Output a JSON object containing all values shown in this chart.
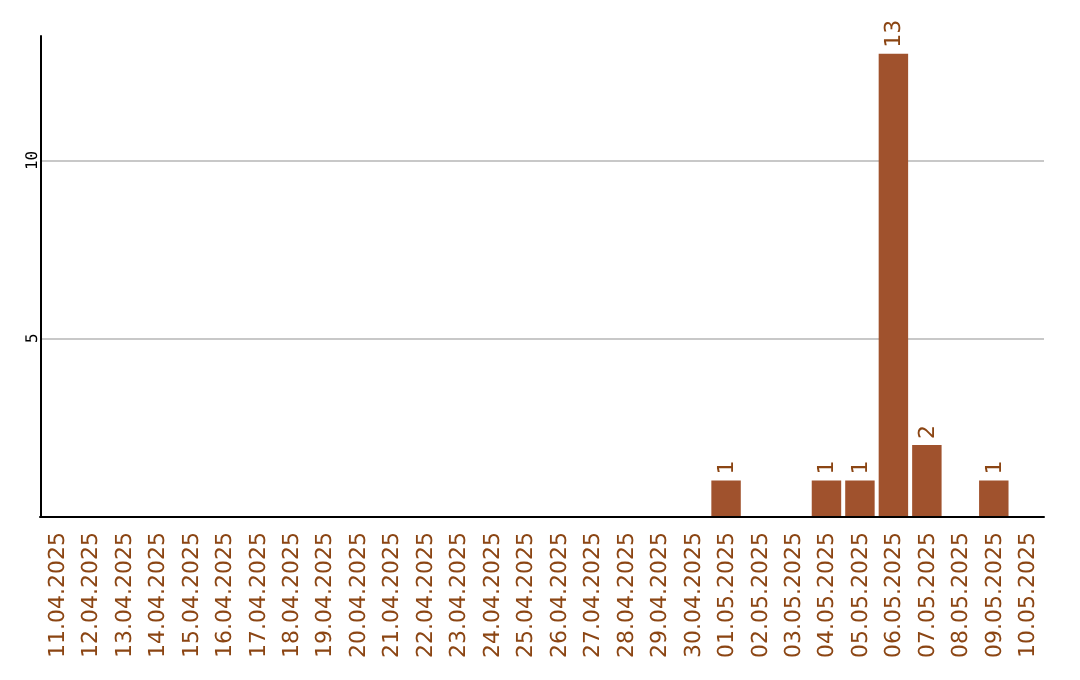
{
  "chart_data": {
    "type": "bar",
    "categories": [
      "11.04.2025",
      "12.04.2025",
      "13.04.2025",
      "14.04.2025",
      "15.04.2025",
      "16.04.2025",
      "17.04.2025",
      "18.04.2025",
      "19.04.2025",
      "20.04.2025",
      "21.04.2025",
      "22.04.2025",
      "23.04.2025",
      "24.04.2025",
      "25.04.2025",
      "26.04.2025",
      "27.04.2025",
      "28.04.2025",
      "29.04.2025",
      "30.04.2025",
      "01.05.2025",
      "02.05.2025",
      "03.05.2025",
      "04.05.2025",
      "05.05.2025",
      "06.05.2025",
      "07.05.2025",
      "08.05.2025",
      "09.05.2025",
      "10.05.2025"
    ],
    "values": [
      0,
      0,
      0,
      0,
      0,
      0,
      0,
      0,
      0,
      0,
      0,
      0,
      0,
      0,
      0,
      0,
      0,
      0,
      0,
      0,
      1,
      0,
      0,
      1,
      1,
      13,
      2,
      0,
      1,
      0
    ],
    "value_labels": [
      null,
      null,
      null,
      null,
      null,
      null,
      null,
      null,
      null,
      null,
      null,
      null,
      null,
      null,
      null,
      null,
      null,
      null,
      null,
      null,
      "1",
      null,
      null,
      "1",
      "1",
      "13",
      "2",
      null,
      "1",
      null
    ],
    "color": "#a0522d",
    "ylim": [
      0,
      13.5
    ],
    "yticks": [
      5,
      10
    ],
    "grid": "y"
  }
}
